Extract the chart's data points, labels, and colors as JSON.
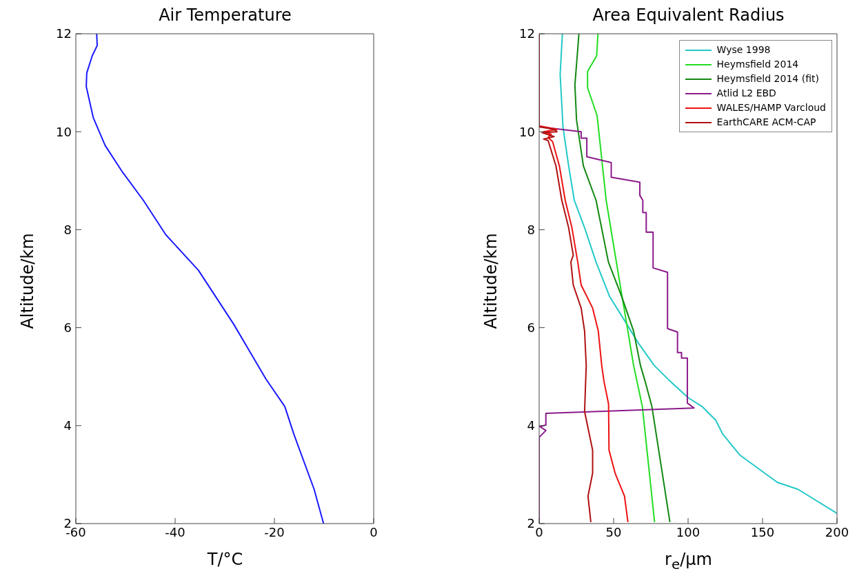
{
  "chart_data": [
    {
      "type": "line",
      "title": "Air Temperature",
      "xlabel": "T/°C",
      "ylabel": "Altitude/km",
      "xlim": [
        -60,
        0
      ],
      "xticks": [
        -60,
        -40,
        -20,
        0
      ],
      "ylim": [
        2,
        12
      ],
      "yticks": [
        2,
        4,
        6,
        8,
        10,
        12
      ],
      "series": [
        {
          "color": "#1a1aff",
          "x": [
            -55.8,
            -55.7,
            -56.7,
            -57.8,
            -57.9,
            -56.5,
            -54.1,
            -50.7,
            -46.4,
            -41.9,
            -35.3,
            -28.2,
            -21.7,
            -17.9,
            -16.1,
            -12.0,
            -10.1
          ],
          "values": [
            12,
            11.76,
            11.55,
            11.2,
            10.92,
            10.29,
            9.72,
            9.19,
            8.6,
            7.9,
            7.17,
            6.07,
            4.95,
            4.39,
            3.83,
            2.7,
            2.0
          ]
        }
      ]
    },
    {
      "type": "line",
      "title": "Area Equivalent Radius",
      "xlabel": "r$_{e}$/μm",
      "ylabel": "Altitude/km",
      "xlim": [
        0,
        200
      ],
      "xticks": [
        0,
        50,
        100,
        150,
        200
      ],
      "ylim": [
        2,
        12
      ],
      "yticks": [
        2,
        4,
        6,
        8,
        10,
        12
      ],
      "legend": "top right",
      "series": [
        {
          "name": "Wyse 1998",
          "color": "#22c8c8",
          "x": [
            15.6,
            14.1,
            16,
            19.8,
            23.6,
            30.5,
            38.2,
            47.4,
            58.9,
            66.5,
            77.2,
            87.8,
            100,
            109.4,
            118.6,
            123.2,
            134.7,
            160,
            173.8,
            200
          ],
          "values": [
            12,
            11.17,
            10.1,
            9.3,
            8.6,
            8.04,
            7.34,
            6.63,
            6.07,
            5.69,
            5.23,
            4.91,
            4.57,
            4.39,
            4.11,
            3.83,
            3.4,
            2.84,
            2.7,
            2.21
          ]
        },
        {
          "name": "Heymsfield 2014",
          "color": "#22dd22",
          "x": [
            39.5,
            38.6,
            32.5,
            32.5,
            38.9,
            45,
            55.7,
            59.6,
            63.4,
            69.3,
            77.5
          ],
          "values": [
            12,
            11.55,
            11.23,
            10.9,
            10.33,
            8.6,
            6.63,
            5.93,
            5.23,
            4.39,
            2.03
          ]
        },
        {
          "name": "Heymsfield 2014 (fit)",
          "color": "#118811",
          "x": [
            26.7,
            24,
            25.1,
            29.7,
            38.2,
            46.5,
            55.5,
            63.4,
            68,
            71.1,
            75.7,
            87.8
          ],
          "values": [
            12,
            10.95,
            10.24,
            9.3,
            8.6,
            7.34,
            6.63,
            5.93,
            5.23,
            4.91,
            4.39,
            2.03
          ]
        },
        {
          "name": "Atlid L2 EBD",
          "color": "#8b1a8b",
          "x": [
            0,
            28.2,
            28.2,
            32,
            32,
            48.4,
            48.4,
            67.6,
            67.6,
            69.6,
            69.6,
            71.9,
            71.9,
            76.5,
            76.5,
            86.2,
            86.2,
            92.9,
            92.9,
            95.6,
            95.6,
            99.5,
            99.5,
            104,
            4.5,
            4.5,
            0.5,
            4.5,
            0,
            0
          ],
          "values": [
            10.1,
            10.0,
            9.87,
            9.87,
            9.49,
            9.37,
            9.07,
            8.97,
            8.7,
            8.6,
            8.35,
            8.35,
            7.95,
            7.95,
            7.22,
            7.13,
            5.98,
            5.91,
            5.49,
            5.49,
            5.38,
            5.38,
            4.46,
            4.36,
            4.25,
            4.01,
            3.98,
            3.9,
            3.76,
            2
          ]
        },
        {
          "name": "WALES/HAMP Varcloud",
          "color": "#ee1111",
          "x": [
            0,
            12,
            3,
            8,
            6,
            9,
            13.6,
            17.5,
            22,
            25.9,
            28.2,
            35.9,
            39.7,
            42,
            43.5,
            46.6,
            46.9,
            51,
            57.3,
            59.6
          ],
          "values": [
            10.12,
            10.05,
            10.0,
            9.95,
            9.88,
            9.8,
            9.3,
            8.6,
            8.04,
            7.34,
            6.87,
            6.4,
            5.93,
            5.23,
            4.91,
            4.44,
            3.5,
            3.03,
            2.56,
            2.03
          ]
        },
        {
          "name": "EarthCARE ACM-CAP",
          "color": "#b01010",
          "x": [
            0,
            0,
            10,
            12,
            2,
            10,
            3,
            6,
            11.3,
            15.2,
            19.8,
            22.9,
            21.3,
            22.9,
            28.2,
            30.5,
            31.6,
            30.5,
            35.9,
            35.9,
            32.8,
            34.7
          ],
          "values": [
            12,
            10.1,
            10.05,
            10.0,
            9.98,
            9.9,
            9.85,
            9.82,
            9.3,
            8.6,
            8.04,
            7.48,
            7.34,
            6.87,
            6.4,
            5.93,
            5.23,
            4.29,
            3.5,
            3.03,
            2.56,
            2.03
          ]
        }
      ]
    }
  ]
}
